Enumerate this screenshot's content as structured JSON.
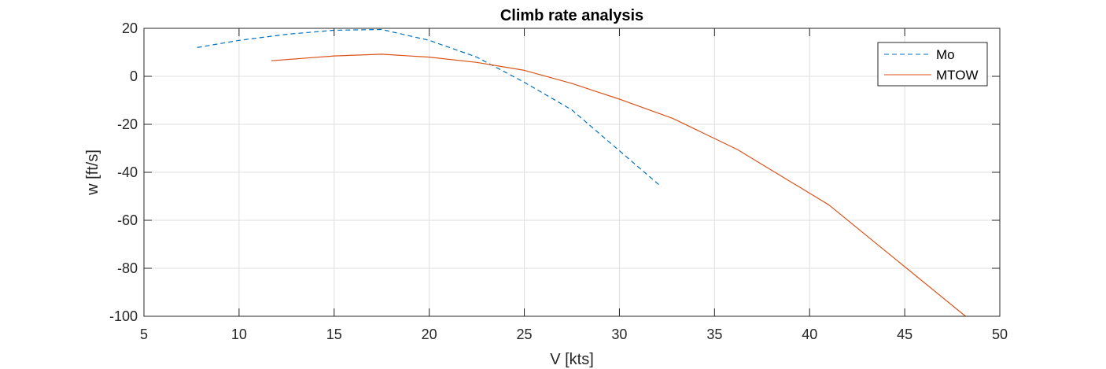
{
  "chart_data": {
    "type": "line",
    "title": "Climb rate analysis",
    "xlabel": "V [kts]",
    "ylabel": "w [ft/s]",
    "xlim": [
      5,
      50
    ],
    "ylim": [
      -100,
      20
    ],
    "xticks": [
      "5",
      "10",
      "15",
      "20",
      "25",
      "30",
      "35",
      "40",
      "45",
      "50"
    ],
    "yticks": [
      "20",
      "0",
      "-20",
      "-40",
      "-60",
      "-80",
      "-100"
    ],
    "grid": true,
    "legend_position": "top-right",
    "series": [
      {
        "name": "Mo",
        "style": "dashed",
        "color": "#0072BD",
        "x": [
          7.8,
          10,
          12.5,
          15,
          17.5,
          20,
          22.5,
          25,
          27.5,
          30,
          32.2
        ],
        "y": [
          12,
          15,
          17.5,
          19.2,
          19.5,
          15,
          8,
          -2.5,
          -14,
          -31,
          -46
        ]
      },
      {
        "name": "MTOW",
        "style": "solid",
        "color": "#D95319",
        "x": [
          11.7,
          15,
          17.5,
          20,
          22.5,
          25,
          27.5,
          30,
          32.8,
          36.2,
          41,
          48.2
        ],
        "y": [
          6.5,
          8.5,
          9.2,
          8,
          5.8,
          2.5,
          -3,
          -9.5,
          -17.5,
          -30.5,
          -53.5,
          -100
        ]
      }
    ]
  }
}
